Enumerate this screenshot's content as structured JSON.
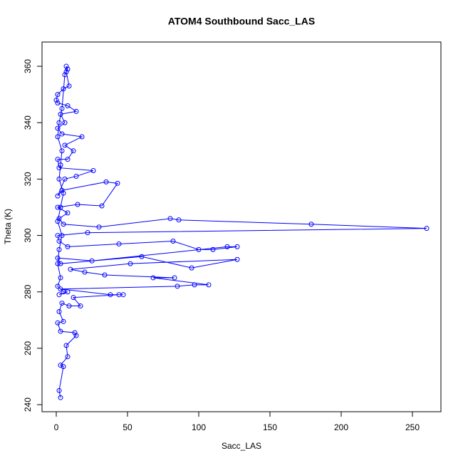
{
  "chart_data": {
    "type": "line",
    "title": "ATOM4 Southbound Sacc_LAS",
    "x_label": "Sacc_LAS",
    "y_label": "Theta (K)",
    "color": "#0000ff",
    "marker": "circle",
    "x": [
      3,
      2,
      5,
      3,
      8,
      7,
      14,
      13,
      3,
      1,
      5,
      2,
      4,
      9,
      17,
      12,
      44,
      47,
      38,
      3,
      85,
      97,
      107,
      68,
      83,
      34,
      20,
      10,
      52,
      127,
      95,
      60,
      3,
      1,
      25,
      120,
      127,
      110,
      100,
      82,
      44,
      8,
      2,
      1,
      22,
      260,
      179,
      86,
      80,
      30,
      5,
      2,
      8,
      1,
      15,
      32,
      43,
      35,
      4,
      1,
      6,
      14,
      26,
      2,
      1,
      8,
      12,
      6,
      18,
      4,
      1,
      6,
      3,
      14,
      8,
      1,
      0,
      1,
      5,
      9,
      7,
      7,
      8,
      6,
      4,
      2,
      1,
      4,
      3,
      2,
      5,
      3,
      1,
      4,
      2,
      1,
      3,
      1,
      5,
      8,
      2
    ],
    "values": [
      242.5,
      245,
      253.5,
      254,
      257,
      261,
      264.5,
      265.5,
      266,
      269,
      269.5,
      273,
      276,
      275,
      275,
      278,
      279,
      279,
      279,
      281,
      282,
      282.5,
      282.5,
      285,
      285,
      286,
      287,
      288,
      290,
      291.5,
      288.5,
      292.5,
      290,
      292,
      291,
      296,
      296,
      295,
      295,
      298,
      297,
      296,
      298,
      300,
      301,
      302.5,
      304,
      305.5,
      306,
      303,
      304,
      306,
      308,
      310,
      311,
      310.5,
      318.5,
      319,
      316,
      314,
      320,
      321,
      323,
      324,
      327,
      327,
      330,
      332,
      335,
      336,
      338,
      340,
      343,
      344,
      346,
      347,
      348,
      350,
      352,
      353,
      358,
      360,
      359,
      357,
      345,
      340,
      335,
      330,
      325,
      320,
      315,
      310,
      305,
      300,
      295,
      290,
      285,
      282,
      280,
      280,
      279
    ],
    "xlim": [
      -10,
      270
    ],
    "ylim": [
      237.5,
      368.6
    ],
    "xticks": [
      0,
      50,
      100,
      150,
      200,
      250
    ],
    "yticks": [
      240,
      260,
      280,
      300,
      320,
      340,
      360
    ]
  }
}
